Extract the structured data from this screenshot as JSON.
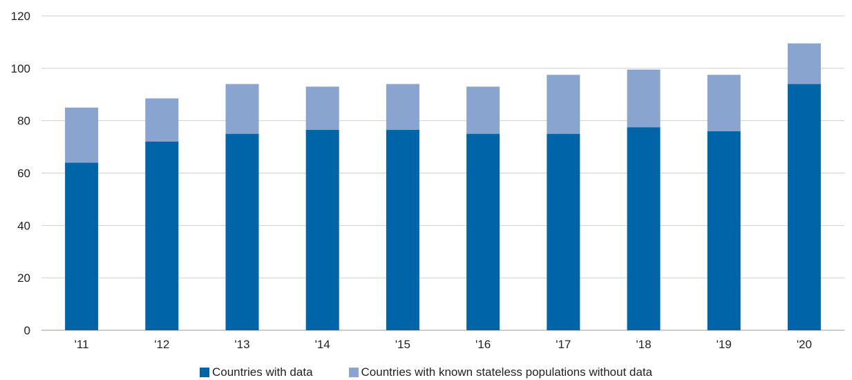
{
  "chart_data": {
    "type": "bar",
    "stacked": true,
    "title": "",
    "xlabel": "",
    "ylabel": "",
    "categories": [
      "'11",
      "'12",
      "'13",
      "'14",
      "'15",
      "'16",
      "'17",
      "'18",
      "'19",
      "'20"
    ],
    "series": [
      {
        "name": "Countries with data",
        "color": "#0064a8",
        "values": [
          64,
          72,
          75,
          76.5,
          76.5,
          75,
          75,
          77.5,
          76,
          94
        ]
      },
      {
        "name": "Countries with known stateless populations without data",
        "color": "#88a4cf",
        "values": [
          21,
          16.5,
          19,
          16.5,
          17.5,
          18,
          22.5,
          22,
          21.5,
          15.5
        ]
      }
    ],
    "ylim": [
      0,
      120
    ],
    "yticks": [
      0,
      20,
      40,
      60,
      80,
      100,
      120
    ],
    "grid": true,
    "legend_position": "bottom"
  }
}
